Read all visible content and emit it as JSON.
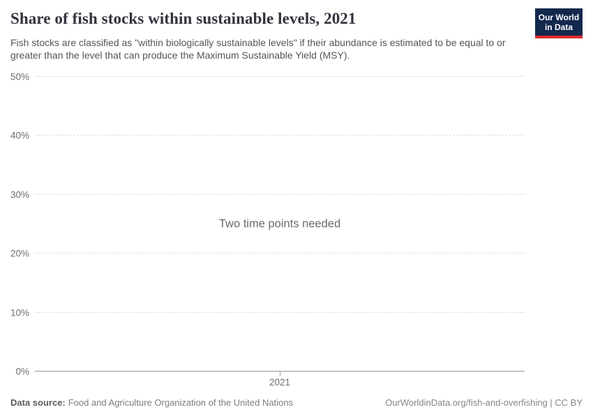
{
  "header": {
    "title": "Share of fish stocks within sustainable levels, 2021",
    "subtitle": "Fish stocks are classified as \"within biologically sustainable levels\" if their abundance is estimated to be equal to or greater than the level that can produce the Maximum Sustainable Yield (MSY).",
    "logo": {
      "line1": "Our World",
      "line2": "in Data",
      "bg_color": "#12294d",
      "stripe_color": "#dc2a2c",
      "text_color": "#ffffff"
    }
  },
  "chart_data": {
    "type": "line",
    "title": "Share of fish stocks within sustainable levels, 2021",
    "series": [],
    "empty_state_message": "Two time points needed",
    "ylim": [
      0,
      50
    ],
    "ytick_values": [
      0,
      10,
      20,
      30,
      40,
      50
    ],
    "ytick_labels": [
      "0%",
      "10%",
      "20%",
      "30%",
      "40%",
      "50%"
    ],
    "xticks": [
      {
        "label": "2021",
        "position": 0.5
      }
    ],
    "grid": "horizontal-dashed",
    "grid_color": "#dddddd",
    "axis_color": "#999999"
  },
  "footer": {
    "datasource_label": "Data source:",
    "datasource_value": "Food and Agriculture Organization of the United Nations",
    "credit": "OurWorldinData.org/fish-and-overfishing | CC BY"
  }
}
